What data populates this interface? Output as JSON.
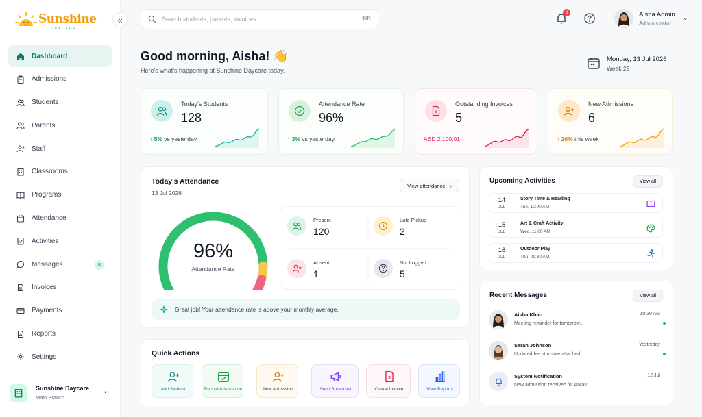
{
  "brand": {
    "name": "Sunshine",
    "sub": "DAYCARE"
  },
  "sidebar": {
    "items": [
      {
        "label": "Dashboard",
        "icon": "home-icon"
      },
      {
        "label": "Admissions",
        "icon": "clipboard-icon"
      },
      {
        "label": "Students",
        "icon": "users-icon"
      },
      {
        "label": "Parents",
        "icon": "users-icon"
      },
      {
        "label": "Staff",
        "icon": "staff-icon"
      },
      {
        "label": "Classrooms",
        "icon": "building-icon"
      },
      {
        "label": "Programs",
        "icon": "book-icon"
      },
      {
        "label": "Attendance",
        "icon": "calendar-icon"
      },
      {
        "label": "Activities",
        "icon": "activity-icon"
      },
      {
        "label": "Messages",
        "icon": "message-icon",
        "badge": "8"
      },
      {
        "label": "Invoices",
        "icon": "invoice-icon"
      },
      {
        "label": "Payments",
        "icon": "card-icon"
      },
      {
        "label": "Reports",
        "icon": "report-icon"
      },
      {
        "label": "Settings",
        "icon": "gear-icon"
      }
    ],
    "branch": {
      "name": "Sunshine Daycare",
      "sub": "Main Branch"
    }
  },
  "search": {
    "placeholder": "Search students, parents, invoices...",
    "shortcut": "⌘K"
  },
  "notifications": {
    "count": "8"
  },
  "user": {
    "name": "Aisha Admin",
    "role": "Administrator"
  },
  "greeting": {
    "title": "Good morning, Aisha! 👋",
    "subtitle": "Here's what's happening at Sunshine Daycare today."
  },
  "date": {
    "line1": "Monday, 13 Jul 2026",
    "line2": "Week 29"
  },
  "stats": [
    {
      "label": "Today's Students",
      "value": "128",
      "trend": "5%",
      "trend_text": "vs yesterday",
      "color": "#14b8a6"
    },
    {
      "label": "Attendance Rate",
      "value": "96%",
      "trend": "3%",
      "trend_text": "vs yesterday",
      "color": "#22c55e"
    },
    {
      "label": "Outstanding Invoices",
      "value": "5",
      "amount": "AED 2,100.01",
      "color": "#e11d48"
    },
    {
      "label": "New Admissions",
      "value": "6",
      "trend": "20%",
      "trend_text": "this week",
      "color": "#f59e0b"
    }
  ],
  "attendance": {
    "title": "Today's Attendance",
    "date": "13 Jul 2026",
    "button": "View attendance",
    "rate": "96%",
    "rate_label": "Attendance Rate",
    "rate_value": 0.96,
    "breakdown": [
      {
        "label": "Present",
        "value": "120"
      },
      {
        "label": "Late Pickup",
        "value": "2"
      },
      {
        "label": "Absent",
        "value": "1"
      },
      {
        "label": "Not Logged",
        "value": "5"
      }
    ],
    "note": "Great job! Your attendance rate is above your monthly average."
  },
  "quick_actions": {
    "title": "Quick Actions",
    "items": [
      {
        "label": "Add Student",
        "color": "#0d9488"
      },
      {
        "label": "Record Attendance",
        "color": "#16a34a"
      },
      {
        "label": "New Admission",
        "color": "#d97706"
      },
      {
        "label": "Send Broadcast",
        "color": "#7c3aed"
      },
      {
        "label": "Create Invoice",
        "color": "#e11d48"
      },
      {
        "label": "View Reports",
        "color": "#2563eb"
      }
    ]
  },
  "activities": {
    "title": "Upcoming Activities",
    "view_all": "View all",
    "items": [
      {
        "day": "14",
        "month": "JUL",
        "name": "Story Time & Reading",
        "time": "Tue, 10:00 AM"
      },
      {
        "day": "15",
        "month": "JUL",
        "name": "Art & Craft Activity",
        "time": "Wed, 11:00 AM"
      },
      {
        "day": "16",
        "month": "JUL",
        "name": "Outdoor Play",
        "time": "Thu, 09:30 AM"
      }
    ]
  },
  "messages": {
    "title": "Recent Messages",
    "view_all": "View all",
    "items": [
      {
        "name": "Aisha Khan",
        "text": "Meeting reminder for tomorrow...",
        "time": "10:30 AM"
      },
      {
        "name": "Sarah Johnson",
        "text": "Updated fee structure attached.",
        "time": "Yesterday"
      },
      {
        "name": "System Notification",
        "text": "New admission received for Aarav.",
        "time": "12 Jul"
      }
    ]
  }
}
